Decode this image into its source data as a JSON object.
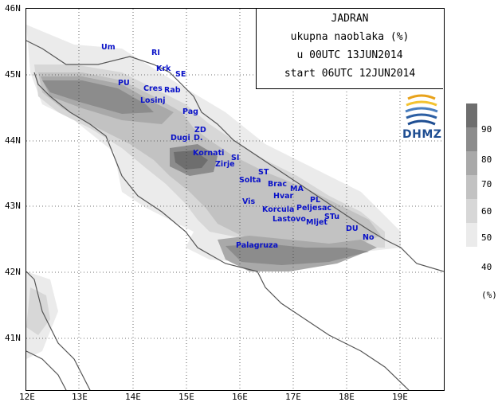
{
  "title": {
    "line1": "JADRAN",
    "line2": "ukupna naoblaka (%)",
    "line3": "u 00UTC 13JUN2014",
    "line4": "start 06UTC 12JUN2014"
  },
  "logo": {
    "text": "DHMZ",
    "icon": "dhmz-logo-icon"
  },
  "axes": {
    "lat_labels": [
      "46N",
      "45N",
      "44N",
      "43N",
      "42N",
      "41N"
    ],
    "lon_labels": [
      "12E",
      "13E",
      "14E",
      "15E",
      "16E",
      "17E",
      "18E",
      "19E"
    ]
  },
  "legend": {
    "unit": "(%)",
    "levels": [
      "90",
      "80",
      "70",
      "60",
      "50",
      "40"
    ],
    "colors": [
      "#6e6e6e",
      "#8c8c8c",
      "#a9a9a9",
      "#c2c2c2",
      "#d7d7d7",
      "#ebebeb"
    ]
  },
  "places": {
    "um": "Um",
    "ri": "RI",
    "krk": "Krk",
    "se": "SE",
    "pu": "PU",
    "cres": "Cres",
    "rab": "Rab",
    "losinj": "Losinj",
    "pag": "Pag",
    "zd": "ZD",
    "dugi": "Dugi",
    "d": "D.",
    "kornati": "Kornati",
    "si": "SI",
    "zirje": "Zirje",
    "st": "ST",
    "solta": "Solta",
    "brac": "Brac",
    "ma": "MA",
    "hvar": "Hvar",
    "vis": "Vis",
    "pl": "PL",
    "korcula": "Korcula",
    "peljesac": "Peljesac",
    "lastovo": "Lastovo",
    "mljet": "Mljet",
    "stu": "STu",
    "du": "DU",
    "no": "No",
    "palagruza": "Palagruza"
  }
}
